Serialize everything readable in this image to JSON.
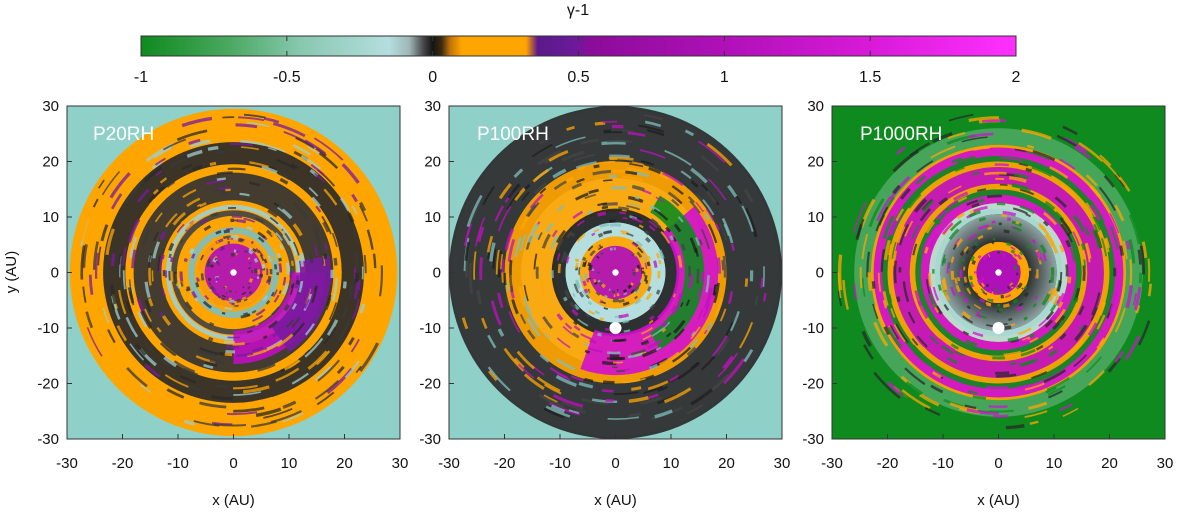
{
  "chart_data": {
    "type": "heatmap",
    "colorbar": {
      "label": "γ-1",
      "range": [
        -1,
        2
      ],
      "ticks": [
        "-1",
        "-0.5",
        "0",
        "0.5",
        "1",
        "1.5",
        "2"
      ],
      "tick_values": [
        -1,
        -0.5,
        0,
        0.5,
        1,
        1.5,
        2
      ],
      "color_stops": [
        {
          "value": -1.0,
          "color": "#0f8a1f"
        },
        {
          "value": -0.7,
          "color": "#4aa860"
        },
        {
          "value": -0.45,
          "color": "#88c8b0"
        },
        {
          "value": -0.15,
          "color": "#b5dede"
        },
        {
          "value": -0.08,
          "color": "#9fb6b6"
        },
        {
          "value": -0.03,
          "color": "#444444"
        },
        {
          "value": 0.0,
          "color": "#151515"
        },
        {
          "value": 0.03,
          "color": "#3a2a10"
        },
        {
          "value": 0.06,
          "color": "#c07408"
        },
        {
          "value": 0.1,
          "color": "#ffa500"
        },
        {
          "value": 0.32,
          "color": "#ffa500"
        },
        {
          "value": 0.36,
          "color": "#5a1a8a"
        },
        {
          "value": 0.48,
          "color": "#6a1a9a"
        },
        {
          "value": 0.55,
          "color": "#8c0c9a"
        },
        {
          "value": 1.0,
          "color": "#b010b8"
        },
        {
          "value": 1.5,
          "color": "#d81ad8"
        },
        {
          "value": 2.0,
          "color": "#ff30ff"
        }
      ]
    },
    "shared_axes": {
      "xlabel": "x (AU)",
      "ylabel": "y (AU)",
      "xlim": [
        -30,
        30
      ],
      "ylim": [
        -30,
        30
      ],
      "xticks": [
        "-30",
        "-20",
        "-10",
        "0",
        "10",
        "20",
        "30"
      ],
      "yticks": [
        "30",
        "20",
        "10",
        "0",
        "-10",
        "-20",
        "-30"
      ],
      "tick_values": [
        -30,
        -20,
        -10,
        0,
        10,
        20,
        30
      ]
    },
    "panels": [
      {
        "label": "P20RH",
        "background": "#ffa500",
        "corner_color": "#8fd0c8",
        "star": {
          "x": 0,
          "y": 0
        },
        "planet": null,
        "features": [
          {
            "kind": "ring",
            "r_in": 0,
            "r_out": 6.5,
            "color": "#b010b8"
          },
          {
            "kind": "ring",
            "r_in": 5.2,
            "r_out": 7.0,
            "color": "#ffa500"
          },
          {
            "kind": "ring",
            "r_in": 7.0,
            "r_out": 8.2,
            "color": "#7fbdbd"
          },
          {
            "kind": "ring",
            "r_in": 10.2,
            "r_out": 11.2,
            "color": "#444444"
          },
          {
            "kind": "ring",
            "r_in": 11.4,
            "r_out": 12.2,
            "color": "#9fcfcf"
          },
          {
            "kind": "ring",
            "r_in": 13.0,
            "r_out": 18.0,
            "color": "#333333"
          },
          {
            "kind": "ring",
            "r_in": 19.5,
            "r_out": 23.5,
            "color": "#2a2a2a"
          },
          {
            "kind": "arc",
            "r_in": 10.5,
            "r_out": 16.5,
            "a0": -90,
            "a1": 0,
            "color": "#c010c0"
          },
          {
            "kind": "arc",
            "r_in": 12.0,
            "r_out": 17.5,
            "a0": -55,
            "a1": 10,
            "color": "#7a1aa0"
          }
        ]
      },
      {
        "label": "P100RH",
        "background": "#b5dede",
        "corner_color": "#8fd0c8",
        "star": {
          "x": 0,
          "y": 0
        },
        "planet": {
          "x": 0,
          "y": -10
        },
        "features": [
          {
            "kind": "ring",
            "r_in": 17.0,
            "r_out": 30.0,
            "color": "#2a2a2a"
          },
          {
            "kind": "ring",
            "r_in": 11.0,
            "r_out": 20.0,
            "color": "#ffa500"
          },
          {
            "kind": "ring",
            "r_in": 9.0,
            "r_out": 11.5,
            "color": "#222222"
          },
          {
            "kind": "ring",
            "r_in": 6.5,
            "r_out": 9.0,
            "color": "#b5dede"
          },
          {
            "kind": "ring",
            "r_in": 0,
            "r_out": 6.5,
            "color": "#ffa500"
          },
          {
            "kind": "ring",
            "r_in": 0,
            "r_out": 4.8,
            "color": "#b010b8"
          },
          {
            "kind": "arc",
            "r_in": 11.0,
            "r_out": 18.5,
            "a0": -110,
            "a1": 40,
            "color": "#d010d0"
          },
          {
            "kind": "arc",
            "r_in": 12.5,
            "r_out": 16.0,
            "a0": -60,
            "a1": 60,
            "color": "#0f8a1f"
          }
        ]
      },
      {
        "label": "P1000RH",
        "background": "#0f8a1f",
        "corner_color": "#0f8a1f",
        "star": {
          "x": 0,
          "y": 0
        },
        "planet": {
          "x": 0,
          "y": -10
        },
        "features": [
          {
            "kind": "ring",
            "r_in": 23.0,
            "r_out": 26.0,
            "color": "#4aa860"
          },
          {
            "kind": "ring",
            "r_in": 11.5,
            "r_out": 23.0,
            "color": "#ffa500"
          },
          {
            "kind": "ring",
            "r_in": 12.5,
            "r_out": 22.5,
            "color": "#d010d0"
          },
          {
            "kind": "ring",
            "r_in": 14.0,
            "r_out": 21.0,
            "color": "#0f8a1f"
          },
          {
            "kind": "ring",
            "r_in": 15.0,
            "r_out": 20.0,
            "color": "#ffa500"
          },
          {
            "kind": "ring",
            "r_in": 16.0,
            "r_out": 19.0,
            "color": "#c010c0"
          },
          {
            "kind": "ring",
            "r_in": 10.5,
            "r_out": 12.5,
            "color": "#b5dede"
          },
          {
            "kind": "ring",
            "r_in": 5.5,
            "r_out": 10.5,
            "color": "#555a5a"
          },
          {
            "kind": "ring",
            "r_in": 0,
            "r_out": 5.5,
            "color": "#ffa500"
          },
          {
            "kind": "ring",
            "r_in": 0,
            "r_out": 4.0,
            "color": "#b010b8"
          }
        ]
      }
    ]
  }
}
